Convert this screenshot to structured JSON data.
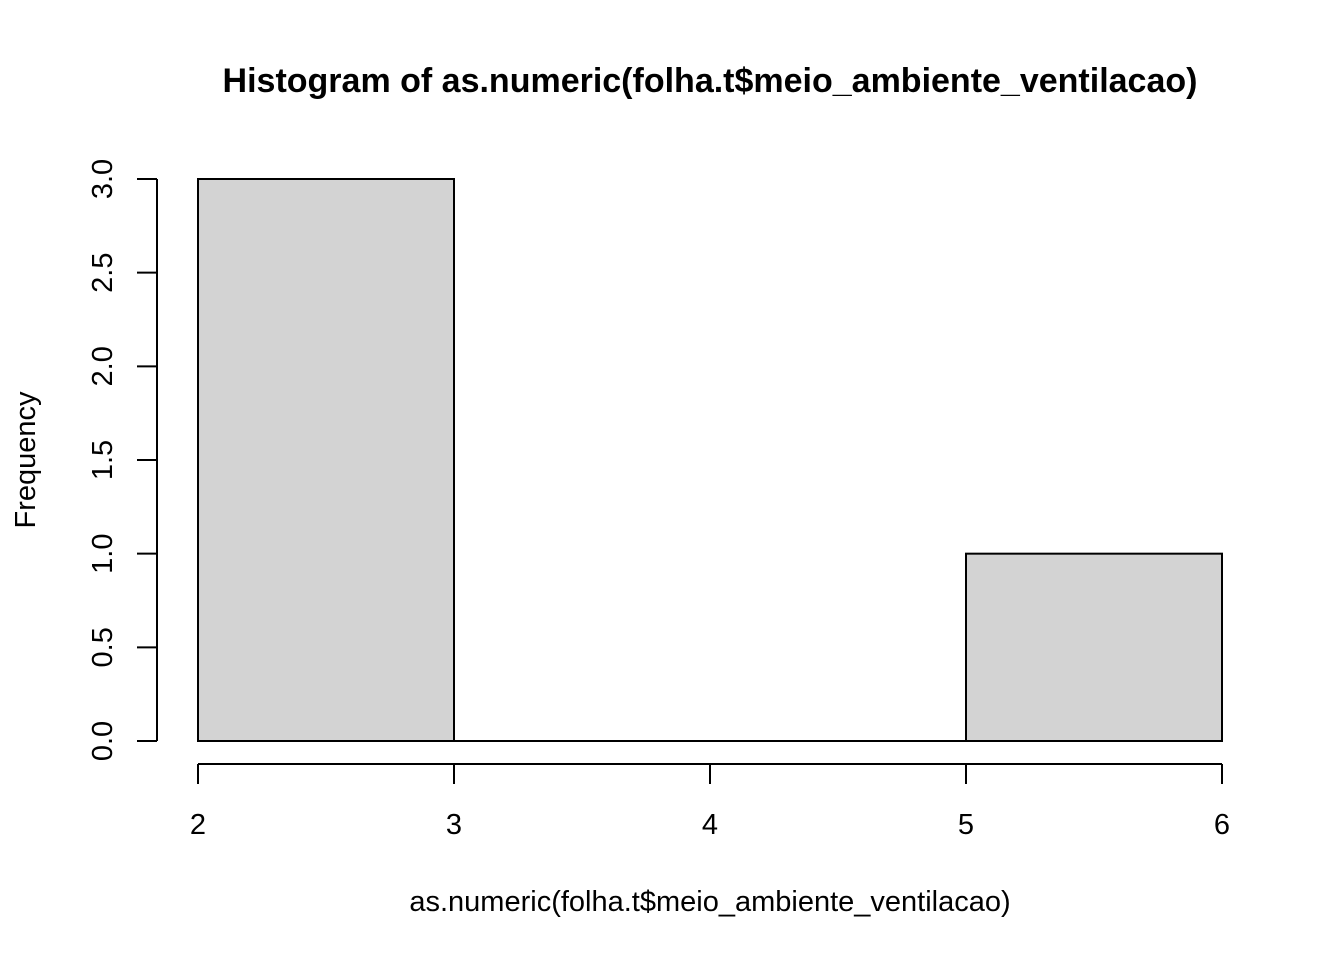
{
  "chart_data": {
    "type": "bar",
    "title": "Histogram of as.numeric(folha.t$meio_ambiente_ventilacao)",
    "xlabel": "as.numeric(folha.t$meio_ambiente_ventilacao)",
    "ylabel": "Frequency",
    "bins": [
      {
        "from": 2,
        "to": 3,
        "value": 3
      },
      {
        "from": 3,
        "to": 4,
        "value": 0
      },
      {
        "from": 4,
        "to": 5,
        "value": 0
      },
      {
        "from": 5,
        "to": 6,
        "value": 1
      }
    ],
    "xlim": [
      2,
      6
    ],
    "ylim": [
      0,
      3
    ],
    "x_ticks": [
      "2",
      "3",
      "4",
      "5",
      "6"
    ],
    "y_ticks": [
      "0.0",
      "0.5",
      "1.0",
      "1.5",
      "2.0",
      "2.5",
      "3.0"
    ],
    "grid": false,
    "bar_color": "#d3d3d3"
  }
}
